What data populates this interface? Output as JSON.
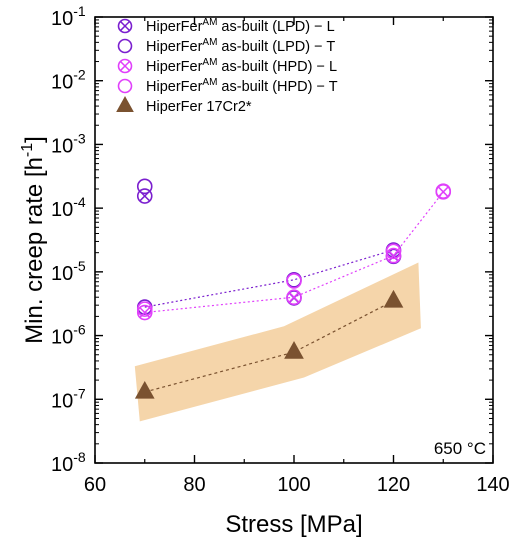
{
  "chart_data": {
    "type": "scatter",
    "xlabel": "Stress [MPa]",
    "ylabel_main": "Min. creep rate [h",
    "ylabel_sup": "-1",
    "ylabel_close": "]",
    "xlim": [
      60,
      140
    ],
    "ylim": [
      1e-08,
      0.1
    ],
    "yscale": "log",
    "x_ticks": [
      {
        "v": 60,
        "label": "60"
      },
      {
        "v": 80,
        "label": "80"
      },
      {
        "v": 100,
        "label": "100"
      },
      {
        "v": 120,
        "label": "120"
      },
      {
        "v": 140,
        "label": "140"
      }
    ],
    "y_ticks": [
      {
        "exp": -8,
        "base": "10",
        "sup": "-8"
      },
      {
        "exp": -7,
        "base": "10",
        "sup": "-7"
      },
      {
        "exp": -6,
        "base": "10",
        "sup": "-6"
      },
      {
        "exp": -5,
        "base": "10",
        "sup": "-5"
      },
      {
        "exp": -4,
        "base": "10",
        "sup": "-4"
      },
      {
        "exp": -3,
        "base": "10",
        "sup": "-3"
      },
      {
        "exp": -2,
        "base": "10",
        "sup": "-2"
      },
      {
        "exp": -1,
        "base": "10",
        "sup": "-1"
      }
    ],
    "annotation": "650 °C",
    "series": [
      {
        "name_pre": "HiperFer",
        "name_sup": "AM",
        "name_post": " as-built (LPD) − L",
        "marker": "circle-x",
        "color": "#7b1fcf",
        "line": false,
        "points": [
          [
            70,
            0.000155
          ],
          [
            100,
            3.9e-06
          ],
          [
            120,
            1.75e-05
          ]
        ]
      },
      {
        "name_pre": "HiperFer",
        "name_sup": "AM",
        "name_post": " as-built (LPD) − T",
        "marker": "circle",
        "color": "#7b1fcf",
        "line": true,
        "points": [
          [
            70,
            0.00022
          ],
          [
            70,
            2.8e-06
          ],
          [
            100,
            7.5e-06
          ],
          [
            120,
            2.2e-05
          ]
        ]
      },
      {
        "name_pre": "HiperFer",
        "name_sup": "AM",
        "name_post": " as-built (HPD) − L",
        "marker": "circle-x",
        "color": "#e040fb",
        "line": true,
        "points": [
          [
            70,
            2.3e-06
          ],
          [
            100,
            4e-06
          ],
          [
            120,
            1.8e-05
          ],
          [
            130,
            0.00018
          ]
        ]
      },
      {
        "name_pre": "HiperFer",
        "name_sup": "AM",
        "name_post": " as-built (HPD) − T",
        "marker": "circle",
        "color": "#e040fb",
        "line": false,
        "points": [
          [
            70,
            2.6e-06
          ],
          [
            100,
            7.2e-06
          ],
          [
            120,
            2.1e-05
          ],
          [
            130,
            0.000185
          ]
        ]
      },
      {
        "name_pre": "HiperFer 17Cr2*",
        "name_sup": "",
        "name_post": "",
        "marker": "triangle",
        "color": "#7a5230",
        "line": true,
        "points": [
          [
            70,
            1.3e-07
          ],
          [
            100,
            5.5e-07
          ],
          [
            120,
            3.5e-06
          ]
        ]
      }
    ],
    "band": {
      "color": "#f5d5aa",
      "polygon": [
        [
          68,
          3.3e-07
        ],
        [
          98,
          1.4e-06
        ],
        [
          125,
          1.4e-05
        ],
        [
          125.5,
          1.3e-06
        ],
        [
          102,
          2.2e-07
        ],
        [
          69,
          4.5e-08
        ]
      ]
    },
    "legend_position": "top-left"
  }
}
